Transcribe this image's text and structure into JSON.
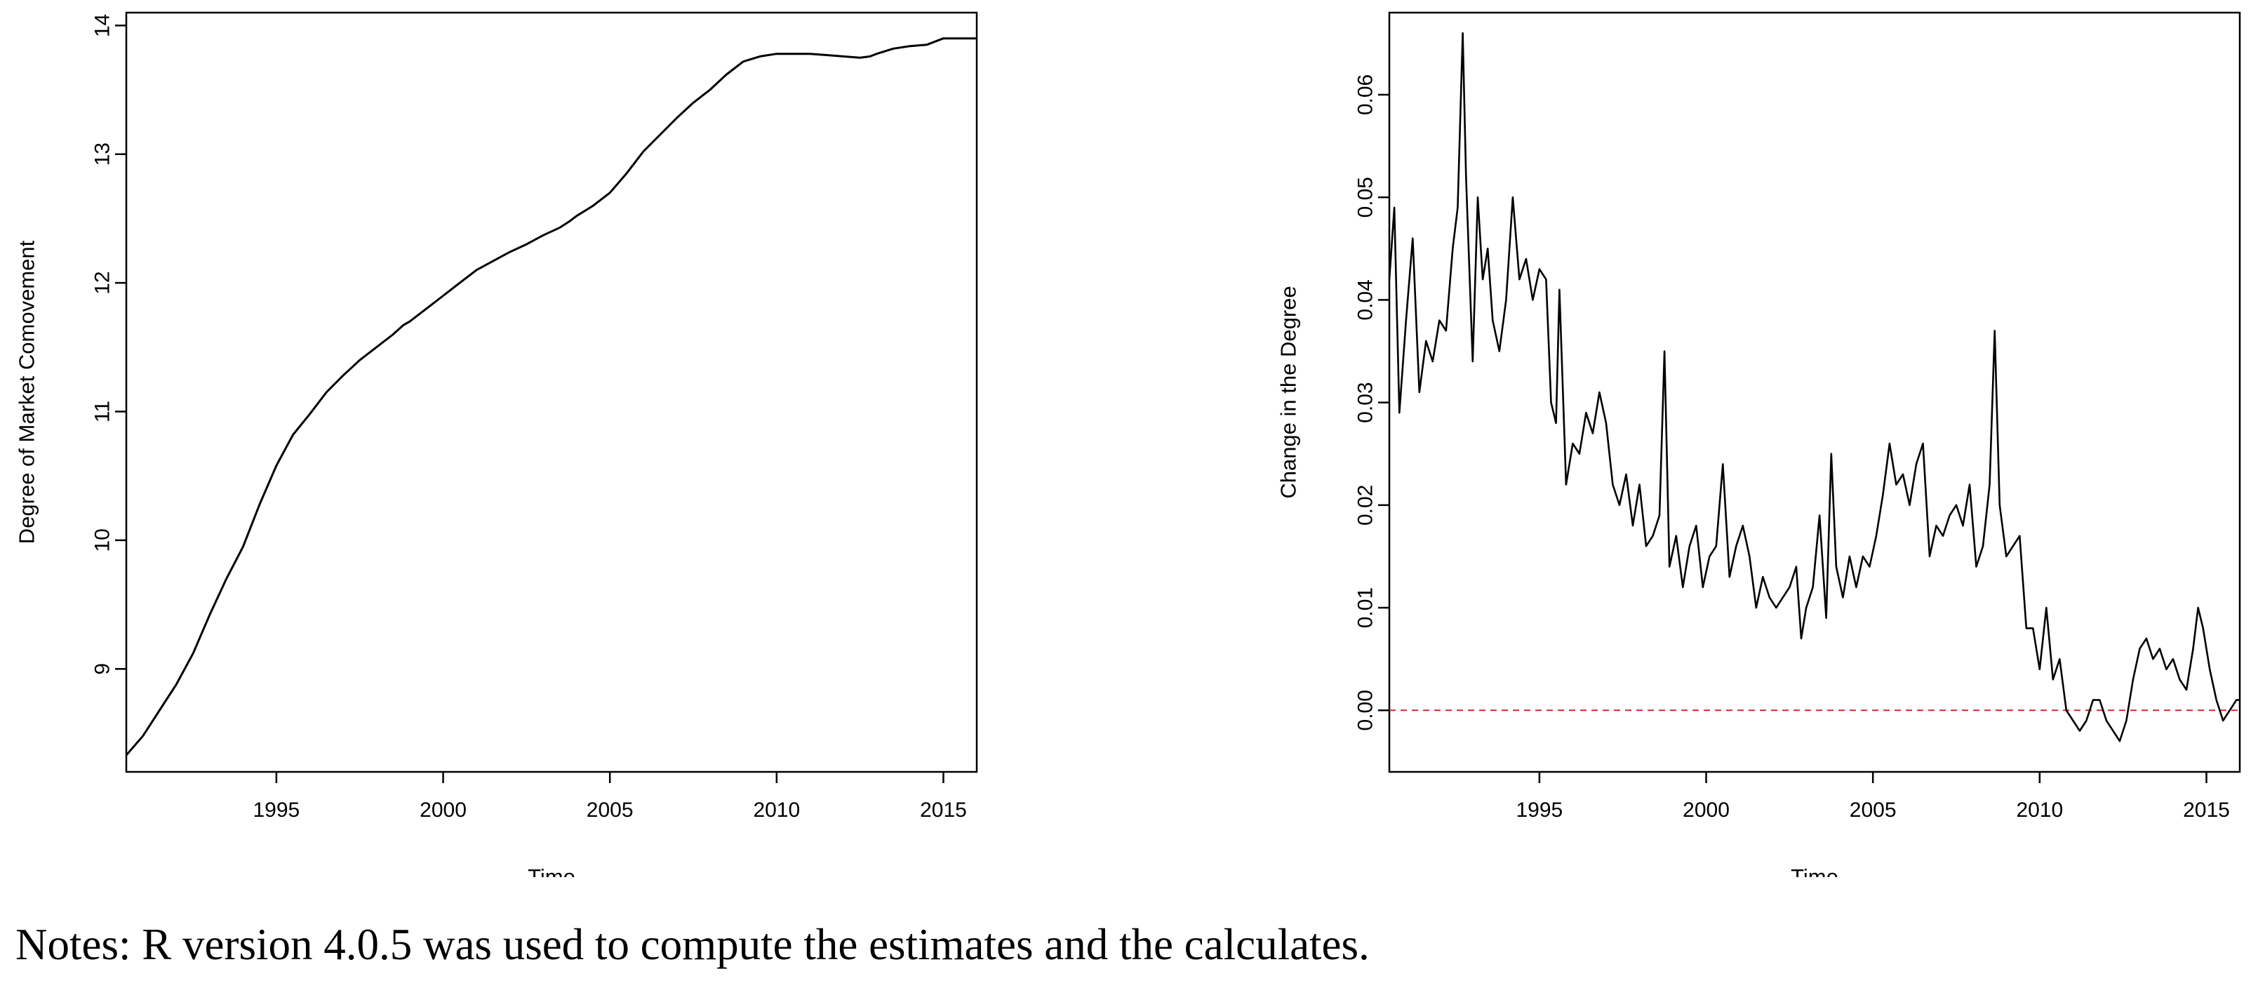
{
  "notes": "Notes: R version 4.0.5 was used to compute the estimates and the calculates.",
  "colors": {
    "line": "#000000",
    "reference_line": "#d62728",
    "frame": "#000000"
  },
  "chart_data": [
    {
      "type": "line",
      "title": "",
      "xlabel": "Time",
      "ylabel": "Degree of Market Comovement",
      "xlim": [
        1990.5,
        2016.0
      ],
      "ylim": [
        8.2,
        14.1
      ],
      "x_ticks": [
        1995,
        2000,
        2005,
        2010,
        2015
      ],
      "x_tick_labels": [
        "1995",
        "2000",
        "2005",
        "2010",
        "2015"
      ],
      "y_ticks": [
        9,
        10,
        11,
        12,
        13,
        14
      ],
      "y_tick_labels": [
        "9",
        "10",
        "11",
        "12",
        "13",
        "14"
      ],
      "grid": false,
      "series": [
        {
          "name": "Degree of Market Comovement",
          "x": [
            1990.5,
            1991.0,
            1991.5,
            1992.0,
            1992.5,
            1992.8,
            1993.0,
            1993.5,
            1994.0,
            1994.5,
            1995.0,
            1995.5,
            1996.0,
            1996.5,
            1997.0,
            1997.5,
            1998.0,
            1998.5,
            1998.8,
            1999.0,
            1999.5,
            2000.0,
            2000.5,
            2001.0,
            2001.5,
            2002.0,
            2002.5,
            2003.0,
            2003.5,
            2003.8,
            2004.0,
            2004.5,
            2005.0,
            2005.5,
            2006.0,
            2006.5,
            2007.0,
            2007.5,
            2008.0,
            2008.5,
            2008.8,
            2009.0,
            2009.5,
            2010.0,
            2010.5,
            2011.0,
            2011.5,
            2012.0,
            2012.5,
            2012.8,
            2013.0,
            2013.5,
            2014.0,
            2014.5,
            2014.8,
            2015.0,
            2015.5,
            2016.0
          ],
          "y": [
            8.33,
            8.48,
            8.68,
            8.88,
            9.12,
            9.3,
            9.42,
            9.7,
            9.95,
            10.28,
            10.58,
            10.82,
            10.98,
            11.15,
            11.28,
            11.4,
            11.5,
            11.6,
            11.67,
            11.7,
            11.8,
            11.9,
            12.0,
            12.1,
            12.17,
            12.24,
            12.3,
            12.37,
            12.43,
            12.48,
            12.52,
            12.6,
            12.7,
            12.85,
            13.02,
            13.15,
            13.28,
            13.4,
            13.5,
            13.62,
            13.68,
            13.72,
            13.76,
            13.78,
            13.78,
            13.78,
            13.77,
            13.76,
            13.75,
            13.76,
            13.78,
            13.82,
            13.84,
            13.85,
            13.88,
            13.9,
            13.9,
            13.9
          ]
        }
      ]
    },
    {
      "type": "line",
      "title": "",
      "xlabel": "Time",
      "ylabel": "Change in the Degree",
      "xlim": [
        1990.5,
        2016.0
      ],
      "ylim": [
        -0.006,
        0.068
      ],
      "x_ticks": [
        1995,
        2000,
        2005,
        2010,
        2015
      ],
      "x_tick_labels": [
        "1995",
        "2000",
        "2005",
        "2010",
        "2015"
      ],
      "y_ticks": [
        0.0,
        0.01,
        0.02,
        0.03,
        0.04,
        0.05,
        0.06
      ],
      "y_tick_labels": [
        "0.00",
        "0.01",
        "0.02",
        "0.03",
        "0.04",
        "0.05",
        "0.06"
      ],
      "grid": false,
      "reference_line": {
        "y": 0.0,
        "style": "dashed"
      },
      "series": [
        {
          "name": "Change in the Degree",
          "x": [
            1990.5,
            1990.65,
            1990.8,
            1991.0,
            1991.2,
            1991.4,
            1991.6,
            1991.8,
            1992.0,
            1992.2,
            1992.4,
            1992.55,
            1992.7,
            1992.8,
            1993.0,
            1993.15,
            1993.3,
            1993.45,
            1993.6,
            1993.8,
            1994.0,
            1994.2,
            1994.4,
            1994.6,
            1994.8,
            1995.0,
            1995.2,
            1995.35,
            1995.5,
            1995.6,
            1995.8,
            1996.0,
            1996.2,
            1996.4,
            1996.6,
            1996.8,
            1997.0,
            1997.2,
            1997.4,
            1997.6,
            1997.8,
            1998.0,
            1998.2,
            1998.4,
            1998.6,
            1998.75,
            1998.9,
            1999.1,
            1999.3,
            1999.5,
            1999.7,
            1999.9,
            2000.1,
            2000.3,
            2000.5,
            2000.7,
            2000.9,
            2001.1,
            2001.3,
            2001.5,
            2001.7,
            2001.9,
            2002.1,
            2002.3,
            2002.5,
            2002.7,
            2002.85,
            2003.0,
            2003.2,
            2003.4,
            2003.6,
            2003.75,
            2003.9,
            2004.1,
            2004.3,
            2004.5,
            2004.7,
            2004.9,
            2005.1,
            2005.3,
            2005.5,
            2005.7,
            2005.9,
            2006.1,
            2006.3,
            2006.5,
            2006.7,
            2006.9,
            2007.1,
            2007.3,
            2007.5,
            2007.7,
            2007.9,
            2008.1,
            2008.3,
            2008.5,
            2008.65,
            2008.8,
            2009.0,
            2009.2,
            2009.4,
            2009.6,
            2009.8,
            2010.0,
            2010.2,
            2010.4,
            2010.6,
            2010.8,
            2011.0,
            2011.2,
            2011.4,
            2011.6,
            2011.8,
            2012.0,
            2012.2,
            2012.4,
            2012.6,
            2012.8,
            2013.0,
            2013.2,
            2013.4,
            2013.6,
            2013.8,
            2014.0,
            2014.2,
            2014.4,
            2014.6,
            2014.75,
            2014.9,
            2015.1,
            2015.3,
            2015.5,
            2015.7,
            2015.9,
            2016.0
          ],
          "y": [
            0.042,
            0.049,
            0.029,
            0.038,
            0.046,
            0.031,
            0.036,
            0.034,
            0.038,
            0.037,
            0.045,
            0.049,
            0.066,
            0.052,
            0.034,
            0.05,
            0.042,
            0.045,
            0.038,
            0.035,
            0.04,
            0.05,
            0.042,
            0.044,
            0.04,
            0.043,
            0.042,
            0.03,
            0.028,
            0.041,
            0.022,
            0.026,
            0.025,
            0.029,
            0.027,
            0.031,
            0.028,
            0.022,
            0.02,
            0.023,
            0.018,
            0.022,
            0.016,
            0.017,
            0.019,
            0.035,
            0.014,
            0.017,
            0.012,
            0.016,
            0.018,
            0.012,
            0.015,
            0.016,
            0.024,
            0.013,
            0.016,
            0.018,
            0.015,
            0.01,
            0.013,
            0.011,
            0.01,
            0.011,
            0.012,
            0.014,
            0.007,
            0.01,
            0.012,
            0.019,
            0.009,
            0.025,
            0.014,
            0.011,
            0.015,
            0.012,
            0.015,
            0.014,
            0.017,
            0.021,
            0.026,
            0.022,
            0.023,
            0.02,
            0.024,
            0.026,
            0.015,
            0.018,
            0.017,
            0.019,
            0.02,
            0.018,
            0.022,
            0.014,
            0.016,
            0.022,
            0.037,
            0.02,
            0.015,
            0.016,
            0.017,
            0.008,
            0.008,
            0.004,
            0.01,
            0.003,
            0.005,
            0.0,
            -0.001,
            -0.002,
            -0.001,
            0.001,
            0.001,
            -0.001,
            -0.002,
            -0.003,
            -0.001,
            0.003,
            0.006,
            0.007,
            0.005,
            0.006,
            0.004,
            0.005,
            0.003,
            0.002,
            0.006,
            0.01,
            0.008,
            0.004,
            0.001,
            -0.001,
            0.0,
            0.001,
            0.001
          ]
        }
      ]
    }
  ]
}
